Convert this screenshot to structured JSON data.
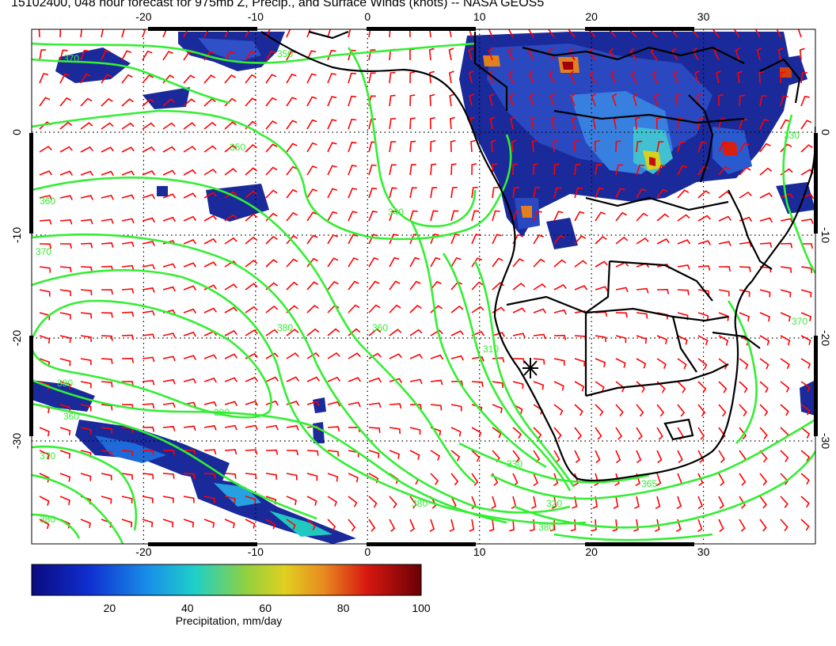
{
  "title": "15102400, 048 hour forecast for 975mb Z, Precip., and Surface Winds (knots) -- NASA GEOS5",
  "map": {
    "lon_range": [
      -30,
      40
    ],
    "lat_range": [
      -40,
      10
    ],
    "lon_ticks": [
      "-20",
      "-10",
      "0",
      "10",
      "20",
      "30"
    ],
    "lat_ticks": [
      "0",
      "-10",
      "-20",
      "-30"
    ],
    "grid": "dotted",
    "contour_color": "#33ee33",
    "wind_barb_color": "#ff0000",
    "coastline_color": "#000000",
    "contour_labels": [
      "340",
      "350",
      "360",
      "370",
      "380",
      "390",
      "310",
      "320",
      "330"
    ],
    "marker": {
      "name": "station-marker",
      "lon": 15,
      "lat": -24
    }
  },
  "colorbar": {
    "label": "Precipitation, mm/day",
    "ticks": [
      "20",
      "40",
      "60",
      "80",
      "100"
    ],
    "colors": [
      "#1a1aa0",
      "#1e4fd8",
      "#18a8e0",
      "#22d0c0",
      "#80d050",
      "#d8d020",
      "#e89020",
      "#d82010",
      "#7a0008"
    ]
  }
}
